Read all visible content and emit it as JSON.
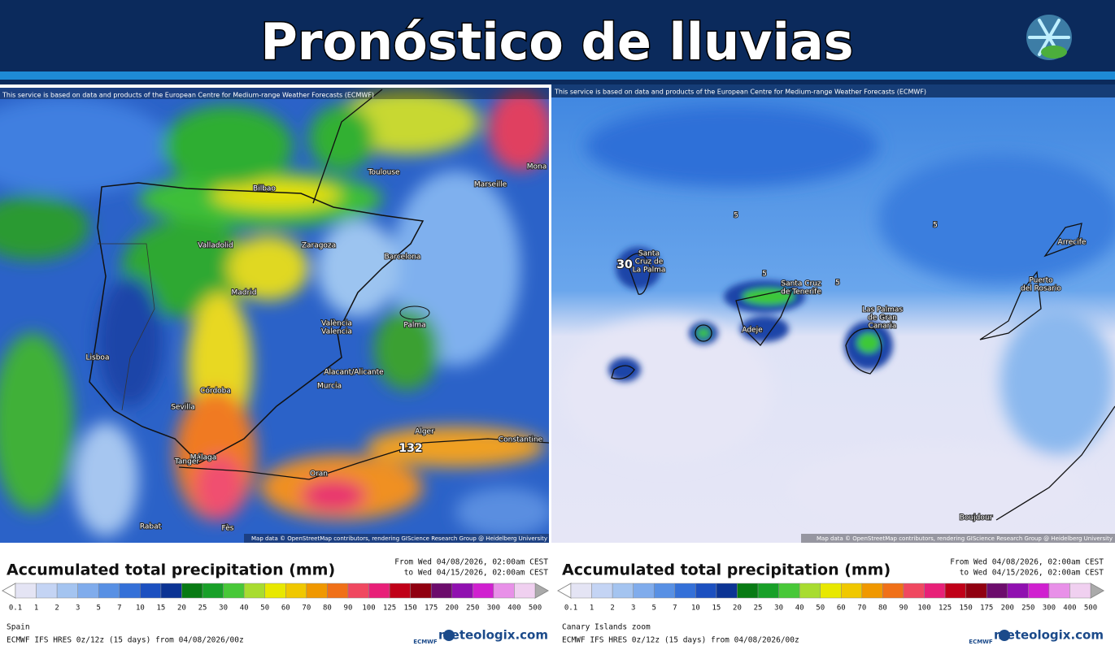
{
  "header": {
    "title": "Pronóstico de lluvias"
  },
  "scale_colors": [
    "#e4e4f4",
    "#c4d4f4",
    "#a4c4f0",
    "#80acec",
    "#5890e4",
    "#3470d8",
    "#1c50c0",
    "#0c3494",
    "#087a14",
    "#18a028",
    "#48c838",
    "#a8dc30",
    "#e8e800",
    "#f0c800",
    "#f09800",
    "#f07018",
    "#f04860",
    "#e82078",
    "#c00018",
    "#900010",
    "#6c0c6c",
    "#9010b0",
    "#d020d0",
    "#e890e8",
    "#f0d0f0"
  ],
  "panels": [
    {
      "notice": "This service is based on data and products of the European Centre for Medium-range Weather Forecasts (ECMWF)",
      "attribution": "Map data © OpenStreetMap contributors, rendering GIScience Research Group @ Heidelberg University",
      "labels": [
        {
          "lines": [
            "Bilbao"
          ]
        },
        {
          "lines": [
            "Toulouse"
          ]
        },
        {
          "lines": [
            "Marseille"
          ]
        },
        {
          "lines": [
            "Mona"
          ]
        },
        {
          "lines": [
            "Valladolid"
          ]
        },
        {
          "lines": [
            "Zaragoza"
          ]
        },
        {
          "lines": [
            "Barcelona"
          ]
        },
        {
          "lines": [
            "Madrid"
          ]
        },
        {
          "lines": [
            "València",
            "Valencia"
          ]
        },
        {
          "lines": [
            "Palma"
          ]
        },
        {
          "lines": [
            "Lisboa"
          ]
        },
        {
          "lines": [
            "Alacant/Alicante"
          ]
        },
        {
          "lines": [
            "Murcia"
          ]
        },
        {
          "lines": [
            "Córdoba"
          ]
        },
        {
          "lines": [
            "Sevilla"
          ]
        },
        {
          "lines": [
            "Málaga"
          ]
        },
        {
          "lines": [
            "Tanger"
          ]
        },
        {
          "lines": [
            "Alger"
          ]
        },
        {
          "lines": [
            "Constantine"
          ]
        },
        {
          "lines": [
            "Oran"
          ]
        },
        {
          "lines": [
            "Rabat"
          ]
        },
        {
          "lines": [
            "Fès"
          ]
        },
        {
          "lines": [
            "132"
          ]
        }
      ],
      "legend": {
        "title": "Accumulated total precipitation (mm)",
        "from": "From Wed 04/08/2026, 02:00am CEST",
        "to": "to Wed 04/15/2026, 02:00am CEST",
        "ticks": [
          "0.1",
          "1",
          "2",
          "3",
          "5",
          "7",
          "10",
          "15",
          "20",
          "25",
          "30",
          "40",
          "50",
          "60",
          "70",
          "80",
          "90",
          "100",
          "125",
          "150",
          "175",
          "200",
          "250",
          "300",
          "400",
          "500"
        ]
      },
      "region": "Spain",
      "model": "ECMWF IFS HRES 0z/12z (15 days) from 04/08/2026/00z",
      "brand": "meteologix.com",
      "ecmwf": "ECMWF"
    },
    {
      "notice": "This service is based on data and products of the European Centre for Medium-range Weather Forecasts (ECMWF)",
      "attribution": "Map data © OpenStreetMap contributors, rendering GIScience Research Group @ Heidelberg University",
      "labels": [
        {
          "lines": [
            "Santa",
            "Cruz de",
            "La Palma"
          ]
        },
        {
          "lines": [
            "30"
          ]
        },
        {
          "lines": [
            "Santa Cruz",
            "de Tenerife"
          ]
        },
        {
          "lines": [
            "Adeje"
          ]
        },
        {
          "lines": [
            "Las Palmas",
            "de Gran",
            "Canaria"
          ]
        },
        {
          "lines": [
            "Arrecife"
          ]
        },
        {
          "lines": [
            "Puerto",
            "del Rosario"
          ]
        },
        {
          "lines": [
            "Boujdour"
          ]
        },
        {
          "lines": [
            "5"
          ]
        },
        {
          "lines": [
            "5"
          ]
        },
        {
          "lines": [
            "5"
          ]
        },
        {
          "lines": [
            "5"
          ]
        }
      ],
      "legend": {
        "title": "Accumulated total precipitation (mm)",
        "from": "From Wed 04/08/2026, 02:00am CEST",
        "to": "to Wed 04/15/2026, 02:00am CEST",
        "ticks": [
          "0.1",
          "1",
          "2",
          "3",
          "5",
          "7",
          "10",
          "15",
          "20",
          "25",
          "30",
          "40",
          "50",
          "60",
          "70",
          "80",
          "90",
          "100",
          "125",
          "150",
          "175",
          "200",
          "250",
          "300",
          "400",
          "500"
        ]
      },
      "region": "Canary Islands zoom",
      "model": "ECMWF IFS HRES 0z/12z (15 days) from 04/08/2026/00z",
      "brand": "meteologix.com",
      "ecmwf": "ECMWF"
    }
  ]
}
